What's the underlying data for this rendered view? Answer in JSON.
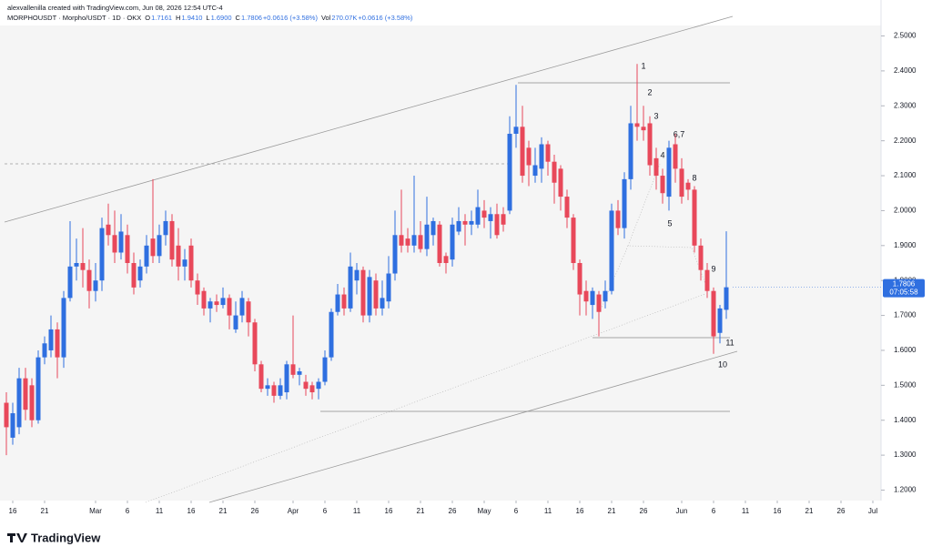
{
  "attribution": "alexvallenilla created with TradingView.com, Jun 08, 2026 12:54 UTC-4",
  "logo": "TradingView",
  "chart_data": {
    "type": "candlestick",
    "symbol": "MORPHOUSDT · Morpho/USDT · 1D · OKX",
    "status": [
      {
        "text": "O",
        "tone": "key"
      },
      {
        "text": "1.7161",
        "tone": "value"
      },
      {
        "text": "H",
        "tone": "key"
      },
      {
        "text": "1.9410",
        "tone": "value"
      },
      {
        "text": "L",
        "tone": "key"
      },
      {
        "text": "1.6900",
        "tone": "value"
      },
      {
        "text": "C",
        "tone": "key"
      },
      {
        "text": "1.7806",
        "tone": "value"
      },
      {
        "text": "+0.0616 (+3.58%)",
        "tone": "value"
      },
      {
        "text": "Vol",
        "tone": "key"
      },
      {
        "text": "270.07K",
        "tone": "value"
      },
      {
        "text": "+0.0616 (+3.58%)",
        "tone": "value"
      }
    ],
    "up_color": "#2f6fe0",
    "down_color": "#e8485a",
    "x": [
      "Feb 15",
      "Feb 16",
      "Feb 17",
      "Feb 18",
      "Feb 19",
      "Feb 20",
      "Feb 21",
      "Feb 22",
      "Feb 23",
      "Feb 24",
      "Feb 25",
      "Feb 26",
      "Feb 27",
      "Feb 28",
      "Mar 1",
      "Mar 2",
      "Mar 3",
      "Mar 4",
      "Mar 5",
      "Mar 6",
      "Mar 7",
      "Mar 8",
      "Mar 9",
      "Mar 10",
      "Mar 11",
      "Mar 12",
      "Mar 13",
      "Mar 14",
      "Mar 15",
      "Mar 16",
      "Mar 17",
      "Mar 18",
      "Mar 19",
      "Mar 20",
      "Mar 21",
      "Mar 22",
      "Mar 23",
      "Mar 24",
      "Mar 25",
      "Mar 26",
      "Mar 27",
      "Mar 28",
      "Mar 29",
      "Mar 30",
      "Mar 31",
      "Apr 1",
      "Apr 2",
      "Apr 3",
      "Apr 4",
      "Apr 5",
      "Apr 6",
      "Apr 7",
      "Apr 8",
      "Apr 9",
      "Apr 10",
      "Apr 11",
      "Apr 12",
      "Apr 13",
      "Apr 14",
      "Apr 15",
      "Apr 16",
      "Apr 17",
      "Apr 18",
      "Apr 19",
      "Apr 20",
      "Apr 21",
      "Apr 22",
      "Apr 23",
      "Apr 24",
      "Apr 25",
      "Apr 26",
      "Apr 27",
      "Apr 28",
      "Apr 29",
      "Apr 30",
      "May 1",
      "May 2",
      "May 3",
      "May 4",
      "May 5",
      "May 6",
      "May 7",
      "May 8",
      "May 9",
      "May 10",
      "May 11",
      "May 12",
      "May 13",
      "May 14",
      "May 15",
      "May 16",
      "May 17",
      "May 18",
      "May 19",
      "May 20",
      "May 21",
      "May 22",
      "May 23",
      "May 24",
      "May 25",
      "May 26",
      "May 27",
      "May 28",
      "May 29",
      "May 30",
      "May 31",
      "Jun 1",
      "Jun 2",
      "Jun 3",
      "Jun 4",
      "Jun 5",
      "Jun 6",
      "Jun 7",
      "Jun 8"
    ],
    "open": [
      1.45,
      1.35,
      1.38,
      1.52,
      1.5,
      1.4,
      1.58,
      1.6,
      1.66,
      1.58,
      1.75,
      1.84,
      1.85,
      1.83,
      1.77,
      1.8,
      1.96,
      1.93,
      1.88,
      1.93,
      1.85,
      1.8,
      1.84,
      1.92,
      1.87,
      1.93,
      1.97,
      1.9,
      1.84,
      1.9,
      1.8,
      1.77,
      1.72,
      1.74,
      1.73,
      1.75,
      1.66,
      1.7,
      1.74,
      1.68,
      1.56,
      1.49,
      1.5,
      1.47,
      1.48,
      1.56,
      1.53,
      1.51,
      1.5,
      1.49,
      1.51,
      1.58,
      1.71,
      1.76,
      1.72,
      1.8,
      1.83,
      1.7,
      1.8,
      1.72,
      1.74,
      1.82,
      1.93,
      1.92,
      1.9,
      1.93,
      1.89,
      1.93,
      1.96,
      1.87,
      1.86,
      1.94,
      1.97,
      1.96,
      1.96,
      2.0,
      1.97,
      1.99,
      1.99,
      2.0,
      2.22,
      2.24,
      2.18,
      2.1,
      2.12,
      2.19,
      2.14,
      2.12,
      2.04,
      1.98,
      1.85,
      1.77,
      1.73,
      1.76,
      1.74,
      1.77,
      2.0,
      1.95,
      2.09,
      2.25,
      2.24,
      2.25,
      2.15,
      2.1,
      2.04,
      2.19,
      2.12,
      2.08,
      2.06,
      1.9,
      1.83,
      1.77,
      1.65,
      1.7161
    ],
    "high": [
      1.48,
      1.45,
      1.55,
      1.55,
      1.52,
      1.6,
      1.64,
      1.7,
      1.68,
      1.77,
      1.97,
      1.92,
      1.95,
      1.86,
      1.85,
      1.98,
      2.02,
      2.0,
      1.99,
      1.96,
      1.88,
      1.86,
      1.93,
      2.09,
      1.96,
      2.0,
      1.99,
      1.95,
      1.89,
      1.92,
      1.82,
      1.78,
      1.75,
      1.76,
      1.78,
      1.76,
      1.74,
      1.77,
      1.75,
      1.69,
      1.57,
      1.52,
      1.51,
      1.52,
      1.57,
      1.7,
      1.55,
      1.53,
      1.51,
      1.52,
      1.6,
      1.72,
      1.79,
      1.78,
      1.88,
      1.85,
      1.84,
      1.83,
      1.82,
      1.8,
      1.87,
      2.0,
      2.06,
      1.95,
      2.1,
      1.97,
      2.04,
      1.98,
      1.97,
      1.88,
      1.98,
      2.01,
      1.99,
      2.0,
      2.06,
      2.03,
      2.01,
      2.02,
      2.01,
      2.27,
      2.36,
      2.3,
      2.2,
      2.18,
      2.21,
      2.2,
      2.16,
      2.13,
      2.06,
      1.99,
      1.86,
      1.8,
      1.78,
      1.77,
      1.8,
      2.02,
      2.03,
      2.11,
      2.3,
      2.42,
      2.3,
      2.27,
      2.18,
      2.12,
      2.2,
      2.22,
      2.15,
      2.09,
      2.07,
      1.92,
      1.85,
      1.78,
      1.73,
      1.941
    ],
    "low": [
      1.3,
      1.33,
      1.36,
      1.4,
      1.38,
      1.39,
      1.56,
      1.58,
      1.52,
      1.55,
      1.74,
      1.8,
      1.78,
      1.72,
      1.74,
      1.77,
      1.9,
      1.85,
      1.86,
      1.82,
      1.76,
      1.78,
      1.82,
      1.85,
      1.85,
      1.9,
      1.84,
      1.8,
      1.8,
      1.78,
      1.73,
      1.7,
      1.68,
      1.71,
      1.72,
      1.66,
      1.65,
      1.68,
      1.64,
      1.54,
      1.48,
      1.47,
      1.45,
      1.46,
      1.46,
      1.52,
      1.5,
      1.47,
      1.46,
      1.46,
      1.5,
      1.57,
      1.7,
      1.7,
      1.71,
      1.76,
      1.68,
      1.68,
      1.7,
      1.7,
      1.72,
      1.8,
      1.88,
      1.88,
      1.88,
      1.88,
      1.87,
      1.9,
      1.84,
      1.82,
      1.84,
      1.93,
      1.9,
      1.93,
      1.95,
      1.95,
      1.92,
      1.92,
      1.94,
      1.99,
      2.18,
      2.08,
      2.07,
      2.08,
      2.08,
      2.1,
      2.02,
      2.0,
      1.95,
      1.83,
      1.7,
      1.7,
      1.69,
      1.64,
      1.72,
      1.76,
      1.93,
      1.92,
      2.06,
      2.2,
      2.2,
      2.1,
      2.06,
      2.02,
      2.0,
      2.08,
      2.02,
      2.03,
      1.88,
      1.8,
      1.75,
      1.59,
      1.62,
      1.69
    ],
    "close": [
      1.38,
      1.42,
      1.52,
      1.43,
      1.4,
      1.58,
      1.62,
      1.66,
      1.58,
      1.75,
      1.84,
      1.85,
      1.83,
      1.77,
      1.8,
      1.95,
      1.93,
      1.88,
      1.94,
      1.85,
      1.78,
      1.84,
      1.9,
      1.87,
      1.93,
      1.97,
      1.86,
      1.84,
      1.86,
      1.8,
      1.76,
      1.72,
      1.74,
      1.73,
      1.75,
      1.7,
      1.7,
      1.75,
      1.68,
      1.56,
      1.49,
      1.5,
      1.47,
      1.5,
      1.56,
      1.53,
      1.54,
      1.49,
      1.48,
      1.51,
      1.58,
      1.71,
      1.76,
      1.72,
      1.84,
      1.83,
      1.7,
      1.81,
      1.72,
      1.75,
      1.82,
      1.93,
      1.9,
      1.9,
      1.93,
      1.89,
      1.96,
      1.97,
      1.85,
      1.85,
      1.96,
      1.97,
      1.96,
      1.97,
      2.01,
      1.98,
      1.99,
      1.93,
      1.96,
      2.22,
      2.24,
      2.1,
      2.13,
      2.13,
      2.19,
      2.14,
      2.08,
      2.04,
      1.98,
      1.85,
      1.76,
      1.74,
      1.77,
      1.71,
      1.77,
      2.0,
      1.95,
      2.09,
      2.25,
      2.24,
      2.23,
      2.13,
      2.1,
      2.05,
      2.18,
      2.12,
      2.04,
      2.06,
      1.9,
      1.83,
      1.77,
      1.64,
      1.72,
      1.7806
    ],
    "ylim": [
      1.17,
      2.53
    ],
    "yticks": [
      {
        "value": 1.2,
        "label": "1.2000"
      },
      {
        "value": 1.3,
        "label": "1.3000"
      },
      {
        "value": 1.4,
        "label": "1.4000"
      },
      {
        "value": 1.5,
        "label": "1.5000"
      },
      {
        "value": 1.6,
        "label": "1.6000"
      },
      {
        "value": 1.7,
        "label": "1.7000"
      },
      {
        "value": 1.8,
        "label": "1.8000"
      },
      {
        "value": 1.9,
        "label": "1.9000"
      },
      {
        "value": 2.0,
        "label": "2.0000"
      },
      {
        "value": 2.1,
        "label": "2.1000"
      },
      {
        "value": 2.2,
        "label": "2.2000"
      },
      {
        "value": 2.3,
        "label": "2.3000"
      },
      {
        "value": 2.4,
        "label": "2.4000"
      },
      {
        "value": 2.5,
        "label": "2.5000"
      }
    ],
    "xticks": [
      {
        "value": "Feb 16",
        "label": "16"
      },
      {
        "value": "Feb 21",
        "label": "21"
      },
      {
        "value": "Mar 1",
        "label": "Mar"
      },
      {
        "value": "Mar 6",
        "label": "6"
      },
      {
        "value": "Mar 11",
        "label": "11"
      },
      {
        "value": "Mar 16",
        "label": "16"
      },
      {
        "value": "Mar 21",
        "label": "21"
      },
      {
        "value": "Mar 26",
        "label": "26"
      },
      {
        "value": "Apr 1",
        "label": "Apr"
      },
      {
        "value": "Apr 6",
        "label": "6"
      },
      {
        "value": "Apr 11",
        "label": "11"
      },
      {
        "value": "Apr 16",
        "label": "16"
      },
      {
        "value": "Apr 21",
        "label": "21"
      },
      {
        "value": "Apr 26",
        "label": "26"
      },
      {
        "value": "May 1",
        "label": "May"
      },
      {
        "value": "May 6",
        "label": "6"
      },
      {
        "value": "May 11",
        "label": "11"
      },
      {
        "value": "May 16",
        "label": "16"
      },
      {
        "value": "May 21",
        "label": "21"
      },
      {
        "value": "May 26",
        "label": "26"
      },
      {
        "value": "Jun 1",
        "label": "Jun"
      },
      {
        "value": "Jun 6",
        "label": "6"
      },
      {
        "value": "Jun 11",
        "label": "11"
      },
      {
        "value": "Jun 16",
        "label": "16"
      },
      {
        "value": "Jun 21",
        "label": "21"
      },
      {
        "value": "Jun 26",
        "label": "26"
      },
      {
        "value": "Jul 1",
        "label": "Jul"
      }
    ],
    "last_price_label": "1.7806",
    "countdown": "07:05:58",
    "annotations": [
      "1",
      "2",
      "3",
      "4",
      "6,7",
      "5",
      "8",
      "9",
      "11",
      "10"
    ]
  }
}
